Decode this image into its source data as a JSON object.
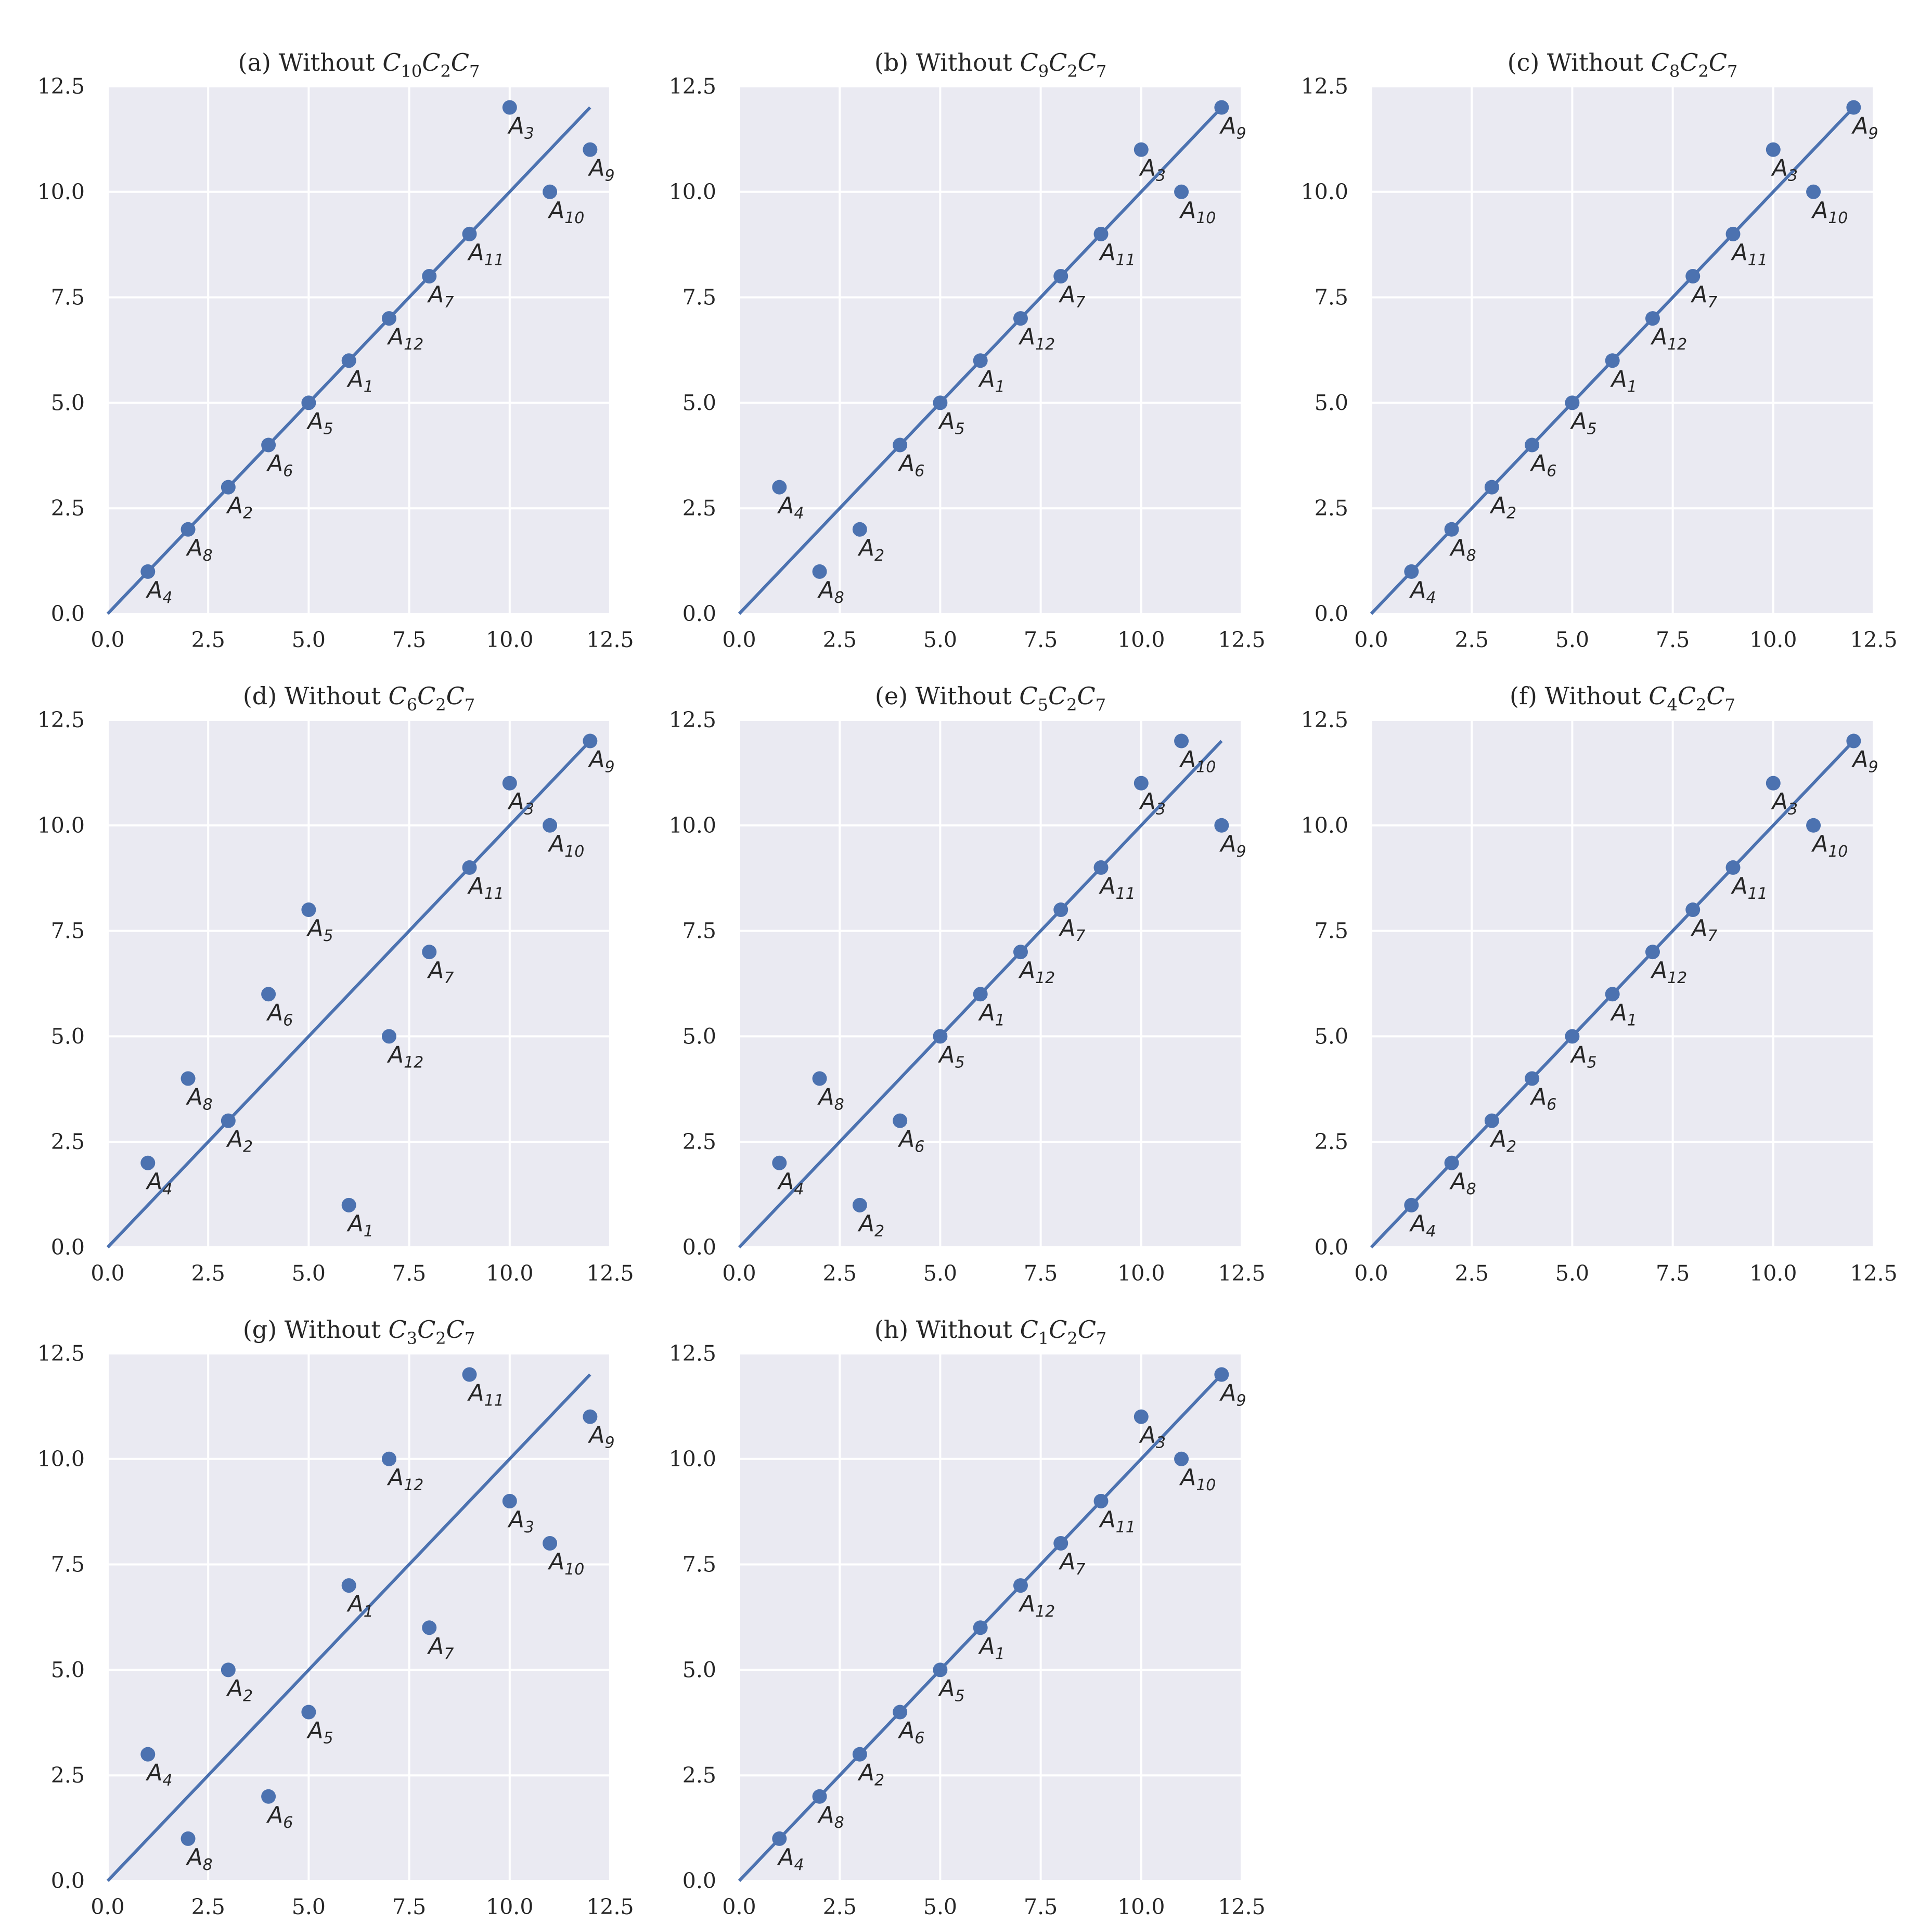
{
  "figure": {
    "colors": {
      "panel_bg": "#eaeaf2",
      "grid": "#ffffff",
      "marker": "#4c72b0",
      "line": "#4c72b0",
      "text": "#262626"
    }
  },
  "chart_data": [
    {
      "type": "scatter",
      "panel": "a",
      "prefix": "(a) Without ",
      "title_terms": [
        [
          "C",
          "10"
        ],
        [
          "C",
          "2"
        ],
        [
          "C",
          "7"
        ]
      ],
      "xlim": [
        0,
        12.5
      ],
      "ylim": [
        0,
        12.5
      ],
      "xticks": [
        "0.0",
        "2.5",
        "5.0",
        "7.5",
        "10.0",
        "12.5"
      ],
      "yticks": [
        "0.0",
        "2.5",
        "5.0",
        "7.5",
        "10.0",
        "12.5"
      ],
      "reference_line": {
        "from": [
          0,
          0
        ],
        "to": [
          12,
          12
        ]
      },
      "points": [
        {
          "name": "A",
          "sub": "1",
          "x": 6,
          "y": 6
        },
        {
          "name": "A",
          "sub": "2",
          "x": 3,
          "y": 3
        },
        {
          "name": "A",
          "sub": "3",
          "x": 10,
          "y": 12
        },
        {
          "name": "A",
          "sub": "4",
          "x": 1,
          "y": 1
        },
        {
          "name": "A",
          "sub": "5",
          "x": 5,
          "y": 5
        },
        {
          "name": "A",
          "sub": "6",
          "x": 4,
          "y": 4
        },
        {
          "name": "A",
          "sub": "7",
          "x": 8,
          "y": 8
        },
        {
          "name": "A",
          "sub": "8",
          "x": 2,
          "y": 2
        },
        {
          "name": "A",
          "sub": "9",
          "x": 12,
          "y": 11
        },
        {
          "name": "A",
          "sub": "10",
          "x": 11,
          "y": 10
        },
        {
          "name": "A",
          "sub": "11",
          "x": 9,
          "y": 9
        },
        {
          "name": "A",
          "sub": "12",
          "x": 7,
          "y": 7
        }
      ]
    },
    {
      "type": "scatter",
      "panel": "b",
      "prefix": "(b) Without ",
      "title_terms": [
        [
          "C",
          "9"
        ],
        [
          "C",
          "2"
        ],
        [
          "C",
          "7"
        ]
      ],
      "xlim": [
        0,
        12.5
      ],
      "ylim": [
        0,
        12.5
      ],
      "xticks": [
        "0.0",
        "2.5",
        "5.0",
        "7.5",
        "10.0",
        "12.5"
      ],
      "yticks": [
        "0.0",
        "2.5",
        "5.0",
        "7.5",
        "10.0",
        "12.5"
      ],
      "reference_line": {
        "from": [
          0,
          0
        ],
        "to": [
          12,
          12
        ]
      },
      "points": [
        {
          "name": "A",
          "sub": "1",
          "x": 6,
          "y": 6
        },
        {
          "name": "A",
          "sub": "2",
          "x": 3,
          "y": 2
        },
        {
          "name": "A",
          "sub": "3",
          "x": 10,
          "y": 11
        },
        {
          "name": "A",
          "sub": "4",
          "x": 1,
          "y": 3
        },
        {
          "name": "A",
          "sub": "5",
          "x": 5,
          "y": 5
        },
        {
          "name": "A",
          "sub": "6",
          "x": 4,
          "y": 4
        },
        {
          "name": "A",
          "sub": "7",
          "x": 8,
          "y": 8
        },
        {
          "name": "A",
          "sub": "8",
          "x": 2,
          "y": 1
        },
        {
          "name": "A",
          "sub": "9",
          "x": 12,
          "y": 12
        },
        {
          "name": "A",
          "sub": "10",
          "x": 11,
          "y": 10
        },
        {
          "name": "A",
          "sub": "11",
          "x": 9,
          "y": 9
        },
        {
          "name": "A",
          "sub": "12",
          "x": 7,
          "y": 7
        }
      ]
    },
    {
      "type": "scatter",
      "panel": "c",
      "prefix": "(c) Without ",
      "title_terms": [
        [
          "C",
          "8"
        ],
        [
          "C",
          "2"
        ],
        [
          "C",
          "7"
        ]
      ],
      "xlim": [
        0,
        12.5
      ],
      "ylim": [
        0,
        12.5
      ],
      "xticks": [
        "0.0",
        "2.5",
        "5.0",
        "7.5",
        "10.0",
        "12.5"
      ],
      "yticks": [
        "0.0",
        "2.5",
        "5.0",
        "7.5",
        "10.0",
        "12.5"
      ],
      "reference_line": {
        "from": [
          0,
          0
        ],
        "to": [
          12,
          12
        ]
      },
      "points": [
        {
          "name": "A",
          "sub": "1",
          "x": 6,
          "y": 6
        },
        {
          "name": "A",
          "sub": "2",
          "x": 3,
          "y": 3
        },
        {
          "name": "A",
          "sub": "3",
          "x": 10,
          "y": 11
        },
        {
          "name": "A",
          "sub": "4",
          "x": 1,
          "y": 1
        },
        {
          "name": "A",
          "sub": "5",
          "x": 5,
          "y": 5
        },
        {
          "name": "A",
          "sub": "6",
          "x": 4,
          "y": 4
        },
        {
          "name": "A",
          "sub": "7",
          "x": 8,
          "y": 8
        },
        {
          "name": "A",
          "sub": "8",
          "x": 2,
          "y": 2
        },
        {
          "name": "A",
          "sub": "9",
          "x": 12,
          "y": 12
        },
        {
          "name": "A",
          "sub": "10",
          "x": 11,
          "y": 10
        },
        {
          "name": "A",
          "sub": "11",
          "x": 9,
          "y": 9
        },
        {
          "name": "A",
          "sub": "12",
          "x": 7,
          "y": 7
        }
      ]
    },
    {
      "type": "scatter",
      "panel": "d",
      "prefix": "(d) Without ",
      "title_terms": [
        [
          "C",
          "6"
        ],
        [
          "C",
          "2"
        ],
        [
          "C",
          "7"
        ]
      ],
      "xlim": [
        0,
        12.5
      ],
      "ylim": [
        0,
        12.5
      ],
      "xticks": [
        "0.0",
        "2.5",
        "5.0",
        "7.5",
        "10.0",
        "12.5"
      ],
      "yticks": [
        "0.0",
        "2.5",
        "5.0",
        "7.5",
        "10.0",
        "12.5"
      ],
      "reference_line": {
        "from": [
          0,
          0
        ],
        "to": [
          12,
          12
        ]
      },
      "points": [
        {
          "name": "A",
          "sub": "1",
          "x": 6,
          "y": 1
        },
        {
          "name": "A",
          "sub": "2",
          "x": 3,
          "y": 3
        },
        {
          "name": "A",
          "sub": "3",
          "x": 10,
          "y": 11
        },
        {
          "name": "A",
          "sub": "4",
          "x": 1,
          "y": 2
        },
        {
          "name": "A",
          "sub": "5",
          "x": 5,
          "y": 8
        },
        {
          "name": "A",
          "sub": "6",
          "x": 4,
          "y": 6
        },
        {
          "name": "A",
          "sub": "7",
          "x": 8,
          "y": 7
        },
        {
          "name": "A",
          "sub": "8",
          "x": 2,
          "y": 4
        },
        {
          "name": "A",
          "sub": "9",
          "x": 12,
          "y": 12
        },
        {
          "name": "A",
          "sub": "10",
          "x": 11,
          "y": 10
        },
        {
          "name": "A",
          "sub": "11",
          "x": 9,
          "y": 9
        },
        {
          "name": "A",
          "sub": "12",
          "x": 7,
          "y": 5
        }
      ]
    },
    {
      "type": "scatter",
      "panel": "e",
      "prefix": "(e) Without ",
      "title_terms": [
        [
          "C",
          "5"
        ],
        [
          "C",
          "2"
        ],
        [
          "C",
          "7"
        ]
      ],
      "xlim": [
        0,
        12.5
      ],
      "ylim": [
        0,
        12.5
      ],
      "xticks": [
        "0.0",
        "2.5",
        "5.0",
        "7.5",
        "10.0",
        "12.5"
      ],
      "yticks": [
        "0.0",
        "2.5",
        "5.0",
        "7.5",
        "10.0",
        "12.5"
      ],
      "reference_line": {
        "from": [
          0,
          0
        ],
        "to": [
          12,
          12
        ]
      },
      "points": [
        {
          "name": "A",
          "sub": "1",
          "x": 6,
          "y": 6
        },
        {
          "name": "A",
          "sub": "2",
          "x": 3,
          "y": 1
        },
        {
          "name": "A",
          "sub": "3",
          "x": 10,
          "y": 11
        },
        {
          "name": "A",
          "sub": "4",
          "x": 1,
          "y": 2
        },
        {
          "name": "A",
          "sub": "5",
          "x": 5,
          "y": 5
        },
        {
          "name": "A",
          "sub": "6",
          "x": 4,
          "y": 3
        },
        {
          "name": "A",
          "sub": "7",
          "x": 8,
          "y": 8
        },
        {
          "name": "A",
          "sub": "8",
          "x": 2,
          "y": 4
        },
        {
          "name": "A",
          "sub": "9",
          "x": 12,
          "y": 10
        },
        {
          "name": "A",
          "sub": "10",
          "x": 11,
          "y": 12
        },
        {
          "name": "A",
          "sub": "11",
          "x": 9,
          "y": 9
        },
        {
          "name": "A",
          "sub": "12",
          "x": 7,
          "y": 7
        }
      ]
    },
    {
      "type": "scatter",
      "panel": "f",
      "prefix": "(f) Without ",
      "title_terms": [
        [
          "C",
          "4"
        ],
        [
          "C",
          "2"
        ],
        [
          "C",
          "7"
        ]
      ],
      "xlim": [
        0,
        12.5
      ],
      "ylim": [
        0,
        12.5
      ],
      "xticks": [
        "0.0",
        "2.5",
        "5.0",
        "7.5",
        "10.0",
        "12.5"
      ],
      "yticks": [
        "0.0",
        "2.5",
        "5.0",
        "7.5",
        "10.0",
        "12.5"
      ],
      "reference_line": {
        "from": [
          0,
          0
        ],
        "to": [
          12,
          12
        ]
      },
      "points": [
        {
          "name": "A",
          "sub": "1",
          "x": 6,
          "y": 6
        },
        {
          "name": "A",
          "sub": "2",
          "x": 3,
          "y": 3
        },
        {
          "name": "A",
          "sub": "3",
          "x": 10,
          "y": 11
        },
        {
          "name": "A",
          "sub": "4",
          "x": 1,
          "y": 1
        },
        {
          "name": "A",
          "sub": "5",
          "x": 5,
          "y": 5
        },
        {
          "name": "A",
          "sub": "6",
          "x": 4,
          "y": 4
        },
        {
          "name": "A",
          "sub": "7",
          "x": 8,
          "y": 8
        },
        {
          "name": "A",
          "sub": "8",
          "x": 2,
          "y": 2
        },
        {
          "name": "A",
          "sub": "9",
          "x": 12,
          "y": 12
        },
        {
          "name": "A",
          "sub": "10",
          "x": 11,
          "y": 10
        },
        {
          "name": "A",
          "sub": "11",
          "x": 9,
          "y": 9
        },
        {
          "name": "A",
          "sub": "12",
          "x": 7,
          "y": 7
        }
      ]
    },
    {
      "type": "scatter",
      "panel": "g",
      "prefix": "(g) Without ",
      "title_terms": [
        [
          "C",
          "3"
        ],
        [
          "C",
          "2"
        ],
        [
          "C",
          "7"
        ]
      ],
      "xlim": [
        0,
        12.5
      ],
      "ylim": [
        0,
        12.5
      ],
      "xticks": [
        "0.0",
        "2.5",
        "5.0",
        "7.5",
        "10.0",
        "12.5"
      ],
      "yticks": [
        "0.0",
        "2.5",
        "5.0",
        "7.5",
        "10.0",
        "12.5"
      ],
      "reference_line": {
        "from": [
          0,
          0
        ],
        "to": [
          12,
          12
        ]
      },
      "points": [
        {
          "name": "A",
          "sub": "1",
          "x": 6,
          "y": 7
        },
        {
          "name": "A",
          "sub": "2",
          "x": 3,
          "y": 5
        },
        {
          "name": "A",
          "sub": "3",
          "x": 10,
          "y": 9
        },
        {
          "name": "A",
          "sub": "4",
          "x": 1,
          "y": 3
        },
        {
          "name": "A",
          "sub": "5",
          "x": 5,
          "y": 4
        },
        {
          "name": "A",
          "sub": "6",
          "x": 4,
          "y": 2
        },
        {
          "name": "A",
          "sub": "7",
          "x": 8,
          "y": 6
        },
        {
          "name": "A",
          "sub": "8",
          "x": 2,
          "y": 1
        },
        {
          "name": "A",
          "sub": "9",
          "x": 12,
          "y": 11
        },
        {
          "name": "A",
          "sub": "10",
          "x": 11,
          "y": 8
        },
        {
          "name": "A",
          "sub": "11",
          "x": 9,
          "y": 12
        },
        {
          "name": "A",
          "sub": "12",
          "x": 7,
          "y": 10
        }
      ]
    },
    {
      "type": "scatter",
      "panel": "h",
      "prefix": "(h) Without ",
      "title_terms": [
        [
          "C",
          "1"
        ],
        [
          "C",
          "2"
        ],
        [
          "C",
          "7"
        ]
      ],
      "xlim": [
        0,
        12.5
      ],
      "ylim": [
        0,
        12.5
      ],
      "xticks": [
        "0.0",
        "2.5",
        "5.0",
        "7.5",
        "10.0",
        "12.5"
      ],
      "yticks": [
        "0.0",
        "2.5",
        "5.0",
        "7.5",
        "10.0",
        "12.5"
      ],
      "reference_line": {
        "from": [
          0,
          0
        ],
        "to": [
          12,
          12
        ]
      },
      "points": [
        {
          "name": "A",
          "sub": "1",
          "x": 6,
          "y": 6
        },
        {
          "name": "A",
          "sub": "2",
          "x": 3,
          "y": 3
        },
        {
          "name": "A",
          "sub": "3",
          "x": 10,
          "y": 11
        },
        {
          "name": "A",
          "sub": "4",
          "x": 1,
          "y": 1
        },
        {
          "name": "A",
          "sub": "5",
          "x": 5,
          "y": 5
        },
        {
          "name": "A",
          "sub": "6",
          "x": 4,
          "y": 4
        },
        {
          "name": "A",
          "sub": "7",
          "x": 8,
          "y": 8
        },
        {
          "name": "A",
          "sub": "8",
          "x": 2,
          "y": 2
        },
        {
          "name": "A",
          "sub": "9",
          "x": 12,
          "y": 12
        },
        {
          "name": "A",
          "sub": "10",
          "x": 11,
          "y": 10
        },
        {
          "name": "A",
          "sub": "11",
          "x": 9,
          "y": 9
        },
        {
          "name": "A",
          "sub": "12",
          "x": 7,
          "y": 7
        }
      ]
    }
  ]
}
